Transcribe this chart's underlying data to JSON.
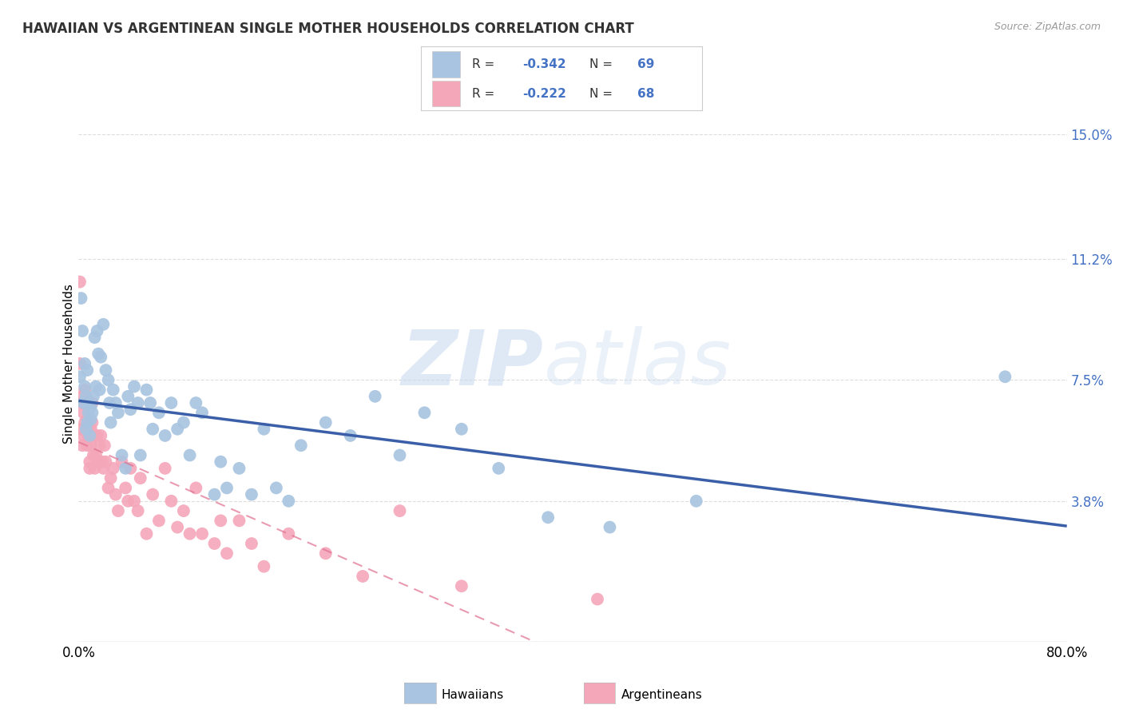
{
  "title": "HAWAIIAN VS ARGENTINEAN SINGLE MOTHER HOUSEHOLDS CORRELATION CHART",
  "source": "Source: ZipAtlas.com",
  "ylabel": "Single Mother Households",
  "ytick_labels": [
    "3.8%",
    "7.5%",
    "11.2%",
    "15.0%"
  ],
  "ytick_values": [
    0.038,
    0.075,
    0.112,
    0.15
  ],
  "xlim": [
    0.0,
    0.8
  ],
  "ylim": [
    -0.005,
    0.165
  ],
  "xtick_labels": [
    "0.0%",
    "80.0%"
  ],
  "xtick_values": [
    0.0,
    0.8
  ],
  "hawaiian_color": "#a8c4e0",
  "argentinean_color": "#f4a7b9",
  "hawaiian_line_color": "#3a5fa8",
  "argentinean_line_color": "#e07090",
  "hawaiian_R": -0.342,
  "hawaiian_N": 69,
  "argentinean_R": -0.222,
  "argentinean_N": 68,
  "watermark": "ZIPatlas",
  "background_color": "#ffffff",
  "grid_color": "#dddddd",
  "legend_text_color": "#4472c4",
  "hawaiian_x": [
    0.001,
    0.002,
    0.003,
    0.004,
    0.005,
    0.005,
    0.006,
    0.006,
    0.007,
    0.007,
    0.008,
    0.008,
    0.009,
    0.01,
    0.01,
    0.011,
    0.012,
    0.013,
    0.014,
    0.015,
    0.016,
    0.017,
    0.018,
    0.02,
    0.022,
    0.024,
    0.025,
    0.026,
    0.028,
    0.03,
    0.032,
    0.035,
    0.038,
    0.04,
    0.042,
    0.045,
    0.048,
    0.05,
    0.055,
    0.058,
    0.06,
    0.065,
    0.07,
    0.075,
    0.08,
    0.085,
    0.09,
    0.095,
    0.1,
    0.11,
    0.115,
    0.12,
    0.13,
    0.14,
    0.15,
    0.16,
    0.17,
    0.18,
    0.2,
    0.22,
    0.24,
    0.26,
    0.28,
    0.31,
    0.34,
    0.38,
    0.43,
    0.5,
    0.75
  ],
  "hawaiian_y": [
    0.076,
    0.1,
    0.09,
    0.068,
    0.08,
    0.073,
    0.07,
    0.06,
    0.078,
    0.062,
    0.068,
    0.065,
    0.058,
    0.067,
    0.063,
    0.065,
    0.07,
    0.088,
    0.073,
    0.09,
    0.083,
    0.072,
    0.082,
    0.092,
    0.078,
    0.075,
    0.068,
    0.062,
    0.072,
    0.068,
    0.065,
    0.052,
    0.048,
    0.07,
    0.066,
    0.073,
    0.068,
    0.052,
    0.072,
    0.068,
    0.06,
    0.065,
    0.058,
    0.068,
    0.06,
    0.062,
    0.052,
    0.068,
    0.065,
    0.04,
    0.05,
    0.042,
    0.048,
    0.04,
    0.06,
    0.042,
    0.038,
    0.055,
    0.062,
    0.058,
    0.07,
    0.052,
    0.065,
    0.06,
    0.048,
    0.033,
    0.03,
    0.038,
    0.076
  ],
  "argentinean_x": [
    0.001,
    0.001,
    0.002,
    0.002,
    0.003,
    0.003,
    0.004,
    0.004,
    0.005,
    0.005,
    0.006,
    0.006,
    0.007,
    0.007,
    0.008,
    0.008,
    0.009,
    0.009,
    0.01,
    0.01,
    0.011,
    0.011,
    0.012,
    0.012,
    0.013,
    0.014,
    0.015,
    0.016,
    0.017,
    0.018,
    0.019,
    0.02,
    0.021,
    0.022,
    0.024,
    0.026,
    0.028,
    0.03,
    0.032,
    0.035,
    0.038,
    0.04,
    0.042,
    0.045,
    0.048,
    0.05,
    0.055,
    0.06,
    0.065,
    0.07,
    0.075,
    0.08,
    0.085,
    0.09,
    0.095,
    0.1,
    0.11,
    0.115,
    0.12,
    0.13,
    0.14,
    0.15,
    0.17,
    0.2,
    0.23,
    0.26,
    0.31,
    0.42
  ],
  "argentinean_y": [
    0.105,
    0.08,
    0.068,
    0.06,
    0.07,
    0.055,
    0.058,
    0.065,
    0.062,
    0.072,
    0.06,
    0.068,
    0.055,
    0.063,
    0.06,
    0.058,
    0.05,
    0.048,
    0.06,
    0.055,
    0.068,
    0.062,
    0.052,
    0.058,
    0.048,
    0.052,
    0.058,
    0.05,
    0.055,
    0.058,
    0.05,
    0.048,
    0.055,
    0.05,
    0.042,
    0.045,
    0.048,
    0.04,
    0.035,
    0.05,
    0.042,
    0.038,
    0.048,
    0.038,
    0.035,
    0.045,
    0.028,
    0.04,
    0.032,
    0.048,
    0.038,
    0.03,
    0.035,
    0.028,
    0.042,
    0.028,
    0.025,
    0.032,
    0.022,
    0.032,
    0.025,
    0.018,
    0.028,
    0.022,
    0.015,
    0.035,
    0.012,
    0.008
  ]
}
